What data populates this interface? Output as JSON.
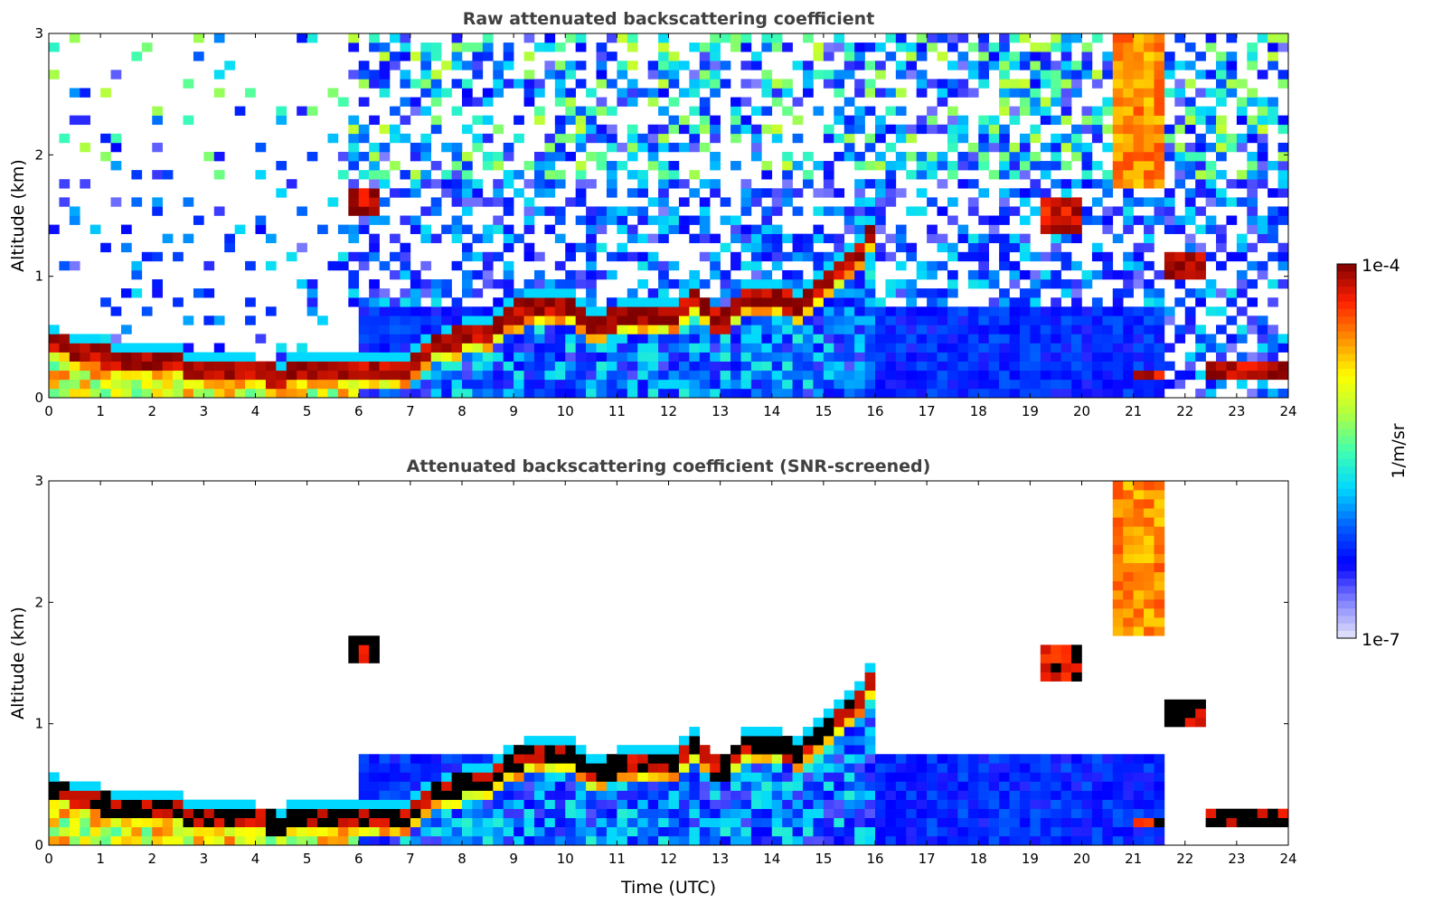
{
  "chart_data": {
    "type": "heatmap",
    "xlabel": "Time (UTC)",
    "xlim": [
      0,
      24
    ],
    "xticks": [
      "0",
      "1",
      "2",
      "3",
      "4",
      "5",
      "6",
      "7",
      "8",
      "9",
      "10",
      "11",
      "12",
      "13",
      "14",
      "15",
      "16",
      "17",
      "18",
      "19",
      "20",
      "21",
      "22",
      "23",
      "24"
    ],
    "ylim": [
      0,
      3
    ],
    "yticks": [
      "0",
      "1",
      "2",
      "3"
    ],
    "panels": [
      {
        "title": "Raw attenuated backscattering coefficient",
        "ylabel": "Altitude (km)",
        "screened": false
      },
      {
        "title": "Attenuated backscattering coefficient (SNR-screened)",
        "ylabel": "Altitude (km)",
        "screened": true
      }
    ],
    "colorbar": {
      "label": "1/m/sr",
      "min_label": "1e-7",
      "max_label": "1e-4",
      "log10_range": [
        -7,
        -4
      ],
      "colors": [
        "#e6e6fa",
        "#8080ff",
        "#0000ff",
        "#0060ff",
        "#00d8ff",
        "#40ffb0",
        "#b0ff40",
        "#ffff00",
        "#ff9000",
        "#ff2000",
        "#800000"
      ]
    },
    "boundary_layer_top_km": {
      "time_h": [
        0,
        0.5,
        1,
        1.5,
        2,
        2.5,
        3,
        3.5,
        4,
        4.5,
        5,
        5.7,
        6.5,
        7,
        7.5,
        8,
        8.5,
        9,
        9.5,
        10,
        10.5,
        11,
        11.5,
        12,
        12.5,
        13,
        13.5,
        14,
        14.5,
        15,
        15.5,
        16
      ],
      "alt_km": [
        0.45,
        0.4,
        0.35,
        0.3,
        0.3,
        0.28,
        0.22,
        0.2,
        0.2,
        0.18,
        0.25,
        0.22,
        0.25,
        0.25,
        0.42,
        0.5,
        0.55,
        0.7,
        0.75,
        0.78,
        0.6,
        0.65,
        0.7,
        0.68,
        0.8,
        0.6,
        0.8,
        0.85,
        0.75,
        0.92,
        1.1,
        1.4
      ],
      "log10_peak": -4.1
    },
    "elevated_layers": [
      {
        "t0": 5.8,
        "t1": 6.4,
        "base_km": 1.48,
        "top_km": 1.72,
        "log10": -4.1
      },
      {
        "t0": 19.1,
        "t1": 20.0,
        "base_km": 1.35,
        "top_km": 1.62,
        "log10": -4.2
      },
      {
        "t0": 21.6,
        "t1": 22.4,
        "base_km": 0.98,
        "top_km": 1.2,
        "log10": -4.1
      },
      {
        "t0": 22.5,
        "t1": 24.0,
        "base_km": 0.18,
        "top_km": 0.32,
        "log10": -4.1
      },
      {
        "t0": 21.0,
        "t1": 21.5,
        "base_km": 0.12,
        "top_km": 0.22,
        "log10": -4.2
      },
      {
        "t0": 20.7,
        "t1": 21.5,
        "base_km": 1.7,
        "top_km": 3.0,
        "log10": -4.6
      }
    ],
    "aerosol_layer": {
      "t0": 6.0,
      "t1": 21.5,
      "top_km": 0.75,
      "log10": -6.3
    }
  }
}
